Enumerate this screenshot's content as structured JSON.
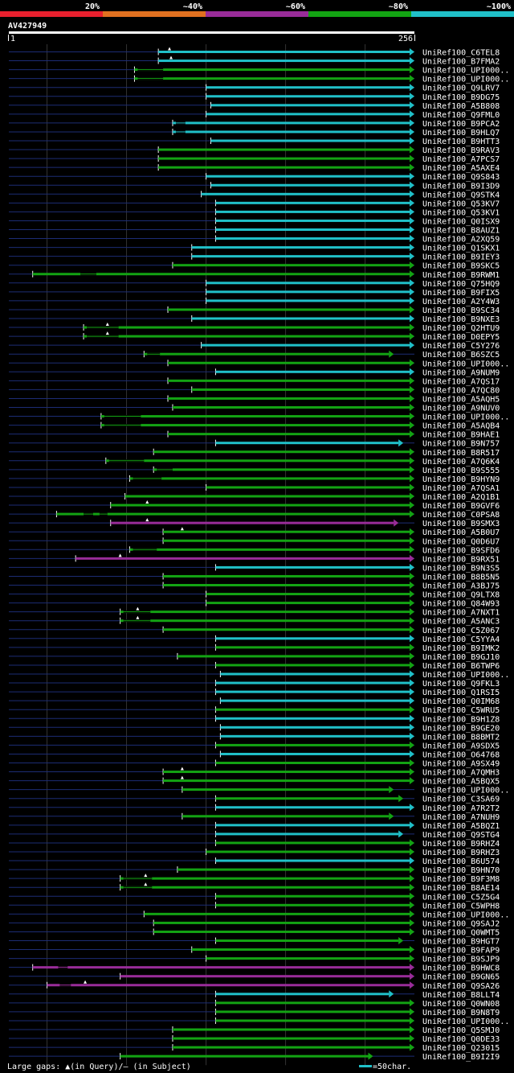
{
  "chart_data": {
    "type": "alignment-overview",
    "query_id": "AV427949",
    "query_start": "1",
    "query_end": "256",
    "query_length": 256,
    "identity_legend": [
      {
        "label": "20%",
        "color": "#e8202e"
      },
      {
        "label": "~40%",
        "color": "#e07020"
      },
      {
        "label": "~60%",
        "color": "#992c99"
      },
      {
        "label": "~80%",
        "color": "#13a313"
      },
      {
        "label": "~100%",
        "color": "#20c0c8"
      }
    ],
    "gridlines": [
      25,
      75,
      125,
      175,
      225
    ],
    "footer_gaps": "Large gaps: ▲(in Query)/– (in Subject)",
    "footer_scale": "=50char.",
    "hits": [
      {
        "id": "UniRef100_C6TEL8",
        "start": 95,
        "end": 256,
        "cls": "100",
        "gq": [
          102
        ],
        "gs": []
      },
      {
        "id": "UniRef100_B7FMA2",
        "start": 95,
        "end": 256,
        "cls": "100",
        "gq": [
          103
        ],
        "gs": []
      },
      {
        "id": "UniRef100_UPI000..",
        "start": 80,
        "end": 256,
        "cls": "80",
        "gq": [],
        "gs": [
          [
            82,
            98
          ]
        ]
      },
      {
        "id": "UniRef100_UPI000..",
        "start": 80,
        "end": 256,
        "cls": "80",
        "gq": [],
        "gs": [
          [
            82,
            98
          ]
        ]
      },
      {
        "id": "UniRef100_Q9LRV7",
        "start": 125,
        "end": 256,
        "cls": "100",
        "gq": [],
        "gs": []
      },
      {
        "id": "UniRef100_B9DG75",
        "start": 125,
        "end": 256,
        "cls": "100",
        "gq": [],
        "gs": []
      },
      {
        "id": "UniRef100_A5B808",
        "start": 128,
        "end": 256,
        "cls": "100",
        "gq": [],
        "gs": []
      },
      {
        "id": "UniRef100_Q9FML0",
        "start": 125,
        "end": 256,
        "cls": "100",
        "gq": [],
        "gs": []
      },
      {
        "id": "UniRef100_B9PCA2",
        "start": 104,
        "end": 256,
        "cls": "100",
        "gq": [],
        "gs": [
          [
            106,
            112
          ]
        ]
      },
      {
        "id": "UniRef100_B9HLQ7",
        "start": 104,
        "end": 256,
        "cls": "100",
        "gq": [],
        "gs": [
          [
            106,
            112
          ]
        ]
      },
      {
        "id": "UniRef100_B9HTT3",
        "start": 128,
        "end": 256,
        "cls": "100",
        "gq": [],
        "gs": []
      },
      {
        "id": "UniRef100_B9RAV3",
        "start": 95,
        "end": 256,
        "cls": "80",
        "gq": [],
        "gs": []
      },
      {
        "id": "UniRef100_A7PCS7",
        "start": 95,
        "end": 256,
        "cls": "80",
        "gq": [],
        "gs": []
      },
      {
        "id": "UniRef100_A5AXE4",
        "start": 95,
        "end": 256,
        "cls": "80",
        "gq": [],
        "gs": []
      },
      {
        "id": "UniRef100_Q9S843",
        "start": 125,
        "end": 256,
        "cls": "100",
        "gq": [],
        "gs": []
      },
      {
        "id": "UniRef100_B9I3D9",
        "start": 128,
        "end": 256,
        "cls": "100",
        "gq": [],
        "gs": []
      },
      {
        "id": "UniRef100_Q9STK4",
        "start": 122,
        "end": 256,
        "cls": "100",
        "gq": [],
        "gs": []
      },
      {
        "id": "UniRef100_Q53KV7",
        "start": 131,
        "end": 256,
        "cls": "100",
        "gq": [],
        "gs": []
      },
      {
        "id": "UniRef100_Q53KV1",
        "start": 131,
        "end": 256,
        "cls": "100",
        "gq": [],
        "gs": []
      },
      {
        "id": "UniRef100_Q0ISX9",
        "start": 131,
        "end": 256,
        "cls": "100",
        "gq": [],
        "gs": []
      },
      {
        "id": "UniRef100_B8AUZ1",
        "start": 131,
        "end": 256,
        "cls": "100",
        "gq": [],
        "gs": []
      },
      {
        "id": "UniRef100_A2XQ59",
        "start": 131,
        "end": 256,
        "cls": "100",
        "gq": [],
        "gs": []
      },
      {
        "id": "UniRef100_Q1SKX1",
        "start": 116,
        "end": 256,
        "cls": "100",
        "gq": [],
        "gs": []
      },
      {
        "id": "UniRef100_B9IEY3",
        "start": 116,
        "end": 256,
        "cls": "100",
        "gq": [],
        "gs": []
      },
      {
        "id": "UniRef100_B9SKC5",
        "start": 104,
        "end": 256,
        "cls": "80",
        "gq": [],
        "gs": []
      },
      {
        "id": "UniRef100_B9RWM1",
        "start": 16,
        "end": 256,
        "cls": "80",
        "gq": [],
        "gs": [
          [
            46,
            56
          ]
        ]
      },
      {
        "id": "UniRef100_Q75HQ9",
        "start": 125,
        "end": 256,
        "cls": "100",
        "gq": [],
        "gs": []
      },
      {
        "id": "UniRef100_B9FIX5",
        "start": 125,
        "end": 256,
        "cls": "100",
        "gq": [],
        "gs": []
      },
      {
        "id": "UniRef100_A2Y4W3",
        "start": 125,
        "end": 256,
        "cls": "100",
        "gq": [],
        "gs": []
      },
      {
        "id": "UniRef100_B9SC34",
        "start": 101,
        "end": 256,
        "cls": "80",
        "gq": [],
        "gs": []
      },
      {
        "id": "UniRef100_B9NXE3",
        "start": 116,
        "end": 256,
        "cls": "100",
        "gq": [],
        "gs": []
      },
      {
        "id": "UniRef100_Q2HTU9",
        "start": 48,
        "end": 256,
        "cls": "80",
        "gq": [
          63
        ],
        "gs": [
          [
            50,
            70
          ]
        ]
      },
      {
        "id": "UniRef100_D0EPY5",
        "start": 48,
        "end": 256,
        "cls": "80",
        "gq": [
          63
        ],
        "gs": [
          [
            50,
            70
          ]
        ]
      },
      {
        "id": "UniRef100_C5Y276",
        "start": 122,
        "end": 256,
        "cls": "100",
        "gq": [],
        "gs": []
      },
      {
        "id": "UniRef100_B6SZC5",
        "start": 86,
        "end": 243,
        "cls": "80",
        "gq": [],
        "gs": [
          [
            88,
            96
          ]
        ]
      },
      {
        "id": "UniRef100_UPI000..",
        "start": 101,
        "end": 256,
        "cls": "80",
        "gq": [],
        "gs": []
      },
      {
        "id": "UniRef100_A9NUM9",
        "start": 131,
        "end": 256,
        "cls": "100",
        "gq": [],
        "gs": []
      },
      {
        "id": "UniRef100_A7QS17",
        "start": 101,
        "end": 256,
        "cls": "80",
        "gq": [],
        "gs": []
      },
      {
        "id": "UniRef100_A7QC80",
        "start": 116,
        "end": 256,
        "cls": "80",
        "gq": [],
        "gs": []
      },
      {
        "id": "UniRef100_A5AQH5",
        "start": 101,
        "end": 256,
        "cls": "80",
        "gq": [],
        "gs": []
      },
      {
        "id": "UniRef100_A9NUV0",
        "start": 104,
        "end": 256,
        "cls": "80",
        "gq": [],
        "gs": []
      },
      {
        "id": "UniRef100_UPI000..",
        "start": 59,
        "end": 256,
        "cls": "80",
        "gq": [],
        "gs": [
          [
            61,
            84
          ]
        ]
      },
      {
        "id": "UniRef100_A5AQB4",
        "start": 59,
        "end": 256,
        "cls": "80",
        "gq": [],
        "gs": [
          [
            61,
            84
          ]
        ]
      },
      {
        "id": "UniRef100_B9HAE1",
        "start": 101,
        "end": 256,
        "cls": "80",
        "gq": [],
        "gs": []
      },
      {
        "id": "UniRef100_B9N757",
        "start": 131,
        "end": 249,
        "cls": "100",
        "gq": [],
        "gs": []
      },
      {
        "id": "UniRef100_B8R517",
        "start": 92,
        "end": 256,
        "cls": "80",
        "gq": [],
        "gs": []
      },
      {
        "id": "UniRef100_A7Q6K4",
        "start": 62,
        "end": 256,
        "cls": "80",
        "gq": [],
        "gs": [
          [
            64,
            86
          ]
        ]
      },
      {
        "id": "UniRef100_B9S555",
        "start": 92,
        "end": 256,
        "cls": "80",
        "gq": [],
        "gs": [
          [
            94,
            104
          ]
        ]
      },
      {
        "id": "UniRef100_B9HYN9",
        "start": 77,
        "end": 256,
        "cls": "80",
        "gq": [],
        "gs": [
          [
            79,
            97
          ]
        ]
      },
      {
        "id": "UniRef100_A7QSA1",
        "start": 125,
        "end": 256,
        "cls": "80",
        "gq": [],
        "gs": []
      },
      {
        "id": "UniRef100_A2Q1B1",
        "start": 74,
        "end": 256,
        "cls": "80",
        "gq": [],
        "gs": []
      },
      {
        "id": "UniRef100_B9GVF6",
        "start": 65,
        "end": 256,
        "cls": "80",
        "gq": [
          88
        ],
        "gs": []
      },
      {
        "id": "UniRef100_C0PSA8",
        "start": 31,
        "end": 256,
        "cls": "80",
        "gq": [],
        "gs": [
          [
            48,
            54
          ],
          [
            58,
            63
          ]
        ]
      },
      {
        "id": "UniRef100_B9SMX3",
        "start": 65,
        "end": 246,
        "cls": "60",
        "gq": [
          88
        ],
        "gs": []
      },
      {
        "id": "UniRef100_A5B0U7",
        "start": 98,
        "end": 256,
        "cls": "80",
        "gq": [
          110
        ],
        "gs": []
      },
      {
        "id": "UniRef100_Q0D6U7",
        "start": 98,
        "end": 256,
        "cls": "80",
        "gq": [],
        "gs": []
      },
      {
        "id": "UniRef100_B9SFD6",
        "start": 77,
        "end": 256,
        "cls": "80",
        "gq": [],
        "gs": [
          [
            79,
            94
          ]
        ]
      },
      {
        "id": "UniRef100_B9RX51",
        "start": 43,
        "end": 256,
        "cls": "60",
        "gq": [
          71
        ],
        "gs": []
      },
      {
        "id": "UniRef100_B9N3S5",
        "start": 131,
        "end": 256,
        "cls": "100",
        "gq": [],
        "gs": []
      },
      {
        "id": "UniRef100_B8B5N5",
        "start": 98,
        "end": 256,
        "cls": "80",
        "gq": [],
        "gs": []
      },
      {
        "id": "UniRef100_A3BJ75",
        "start": 98,
        "end": 256,
        "cls": "80",
        "gq": [],
        "gs": []
      },
      {
        "id": "UniRef100_Q9LTX8",
        "start": 125,
        "end": 256,
        "cls": "80",
        "gq": [],
        "gs": []
      },
      {
        "id": "UniRef100_Q84W93",
        "start": 125,
        "end": 256,
        "cls": "80",
        "gq": [],
        "gs": []
      },
      {
        "id": "UniRef100_A7NXT1",
        "start": 71,
        "end": 256,
        "cls": "80",
        "gq": [
          82
        ],
        "gs": [
          [
            73,
            90
          ]
        ]
      },
      {
        "id": "UniRef100_A5ANC3",
        "start": 71,
        "end": 256,
        "cls": "80",
        "gq": [
          82
        ],
        "gs": [
          [
            73,
            90
          ]
        ]
      },
      {
        "id": "UniRef100_C5Z067",
        "start": 98,
        "end": 256,
        "cls": "80",
        "gq": [],
        "gs": []
      },
      {
        "id": "UniRef100_C5YYA4",
        "start": 131,
        "end": 256,
        "cls": "100",
        "gq": [],
        "gs": []
      },
      {
        "id": "UniRef100_B9IMK2",
        "start": 131,
        "end": 256,
        "cls": "80",
        "gq": [],
        "gs": []
      },
      {
        "id": "UniRef100_B9GJ10",
        "start": 107,
        "end": 256,
        "cls": "80",
        "gq": [],
        "gs": []
      },
      {
        "id": "UniRef100_B6TWP6",
        "start": 131,
        "end": 256,
        "cls": "80",
        "gq": [],
        "gs": []
      },
      {
        "id": "UniRef100_UPI000..",
        "start": 134,
        "end": 256,
        "cls": "100",
        "gq": [],
        "gs": []
      },
      {
        "id": "UniRef100_Q9FKL3",
        "start": 131,
        "end": 256,
        "cls": "100",
        "gq": [],
        "gs": []
      },
      {
        "id": "UniRef100_Q1RSI5",
        "start": 131,
        "end": 256,
        "cls": "100",
        "gq": [],
        "gs": []
      },
      {
        "id": "UniRef100_Q0IM68",
        "start": 134,
        "end": 256,
        "cls": "100",
        "gq": [],
        "gs": []
      },
      {
        "id": "UniRef100_C5WRU5",
        "start": 131,
        "end": 256,
        "cls": "80",
        "gq": [],
        "gs": []
      },
      {
        "id": "UniRef100_B9H1Z8",
        "start": 131,
        "end": 256,
        "cls": "100",
        "gq": [],
        "gs": []
      },
      {
        "id": "UniRef100_B9GE20",
        "start": 134,
        "end": 256,
        "cls": "100",
        "gq": [],
        "gs": []
      },
      {
        "id": "UniRef100_B8BMT2",
        "start": 134,
        "end": 256,
        "cls": "100",
        "gq": [],
        "gs": []
      },
      {
        "id": "UniRef100_A9SDX5",
        "start": 131,
        "end": 256,
        "cls": "80",
        "gq": [],
        "gs": []
      },
      {
        "id": "UniRef100_O64768",
        "start": 134,
        "end": 256,
        "cls": "100",
        "gq": [],
        "gs": []
      },
      {
        "id": "UniRef100_A9SX49",
        "start": 131,
        "end": 256,
        "cls": "80",
        "gq": [],
        "gs": []
      },
      {
        "id": "UniRef100_A7QMH3",
        "start": 98,
        "end": 256,
        "cls": "80",
        "gq": [
          110
        ],
        "gs": []
      },
      {
        "id": "UniRef100_A5BQX5",
        "start": 98,
        "end": 256,
        "cls": "80",
        "gq": [
          110
        ],
        "gs": []
      },
      {
        "id": "UniRef100_UPI000..",
        "start": 110,
        "end": 243,
        "cls": "80",
        "gq": [],
        "gs": []
      },
      {
        "id": "UniRef100_C3SA69",
        "start": 131,
        "end": 249,
        "cls": "80",
        "gq": [],
        "gs": []
      },
      {
        "id": "UniRef100_A7R2T2",
        "start": 131,
        "end": 256,
        "cls": "100",
        "gq": [],
        "gs": []
      },
      {
        "id": "UniRef100_A7NUH9",
        "start": 110,
        "end": 243,
        "cls": "80",
        "gq": [],
        "gs": []
      },
      {
        "id": "UniRef100_A5BQZ1",
        "start": 131,
        "end": 256,
        "cls": "100",
        "gq": [],
        "gs": []
      },
      {
        "id": "UniRef100_Q9STG4",
        "start": 131,
        "end": 249,
        "cls": "100",
        "gq": [],
        "gs": []
      },
      {
        "id": "UniRef100_B9RHZ4",
        "start": 131,
        "end": 256,
        "cls": "80",
        "gq": [],
        "gs": []
      },
      {
        "id": "UniRef100_B9RHZ3",
        "start": 125,
        "end": 256,
        "cls": "80",
        "gq": [],
        "gs": []
      },
      {
        "id": "UniRef100_B6U574",
        "start": 131,
        "end": 256,
        "cls": "100",
        "gq": [],
        "gs": []
      },
      {
        "id": "UniRef100_B9HN70",
        "start": 107,
        "end": 256,
        "cls": "80",
        "gq": [],
        "gs": []
      },
      {
        "id": "UniRef100_B9F3M8",
        "start": 71,
        "end": 256,
        "cls": "80",
        "gq": [
          87
        ],
        "gs": [
          [
            73,
            91
          ]
        ]
      },
      {
        "id": "UniRef100_B8AE14",
        "start": 71,
        "end": 256,
        "cls": "80",
        "gq": [
          87
        ],
        "gs": [
          [
            73,
            91
          ]
        ]
      },
      {
        "id": "UniRef100_C5Z5G4",
        "start": 131,
        "end": 256,
        "cls": "80",
        "gq": [],
        "gs": []
      },
      {
        "id": "UniRef100_C5WPH8",
        "start": 131,
        "end": 256,
        "cls": "80",
        "gq": [],
        "gs": []
      },
      {
        "id": "UniRef100_UPI000..",
        "start": 86,
        "end": 256,
        "cls": "80",
        "gq": [],
        "gs": []
      },
      {
        "id": "UniRef100_Q9SAJ2",
        "start": 92,
        "end": 256,
        "cls": "80",
        "gq": [],
        "gs": []
      },
      {
        "id": "UniRef100_Q0WMT5",
        "start": 92,
        "end": 256,
        "cls": "80",
        "gq": [],
        "gs": []
      },
      {
        "id": "UniRef100_B9HGT7",
        "start": 131,
        "end": 249,
        "cls": "80",
        "gq": [],
        "gs": []
      },
      {
        "id": "UniRef100_B9FAP9",
        "start": 116,
        "end": 256,
        "cls": "80",
        "gq": [],
        "gs": []
      },
      {
        "id": "UniRef100_B9SJP9",
        "start": 125,
        "end": 256,
        "cls": "80",
        "gq": [],
        "gs": []
      },
      {
        "id": "UniRef100_B9HWC8",
        "start": 16,
        "end": 256,
        "cls": "60",
        "gq": [],
        "gs": [
          [
            32,
            38
          ]
        ]
      },
      {
        "id": "UniRef100_B9GN65",
        "start": 71,
        "end": 256,
        "cls": "60",
        "gq": [],
        "gs": []
      },
      {
        "id": "UniRef100_Q9SA26",
        "start": 25,
        "end": 256,
        "cls": "60",
        "gq": [
          49
        ],
        "gs": [
          [
            33,
            40
          ]
        ]
      },
      {
        "id": "UniRef100_B8LLT4",
        "start": 131,
        "end": 243,
        "cls": "100",
        "gq": [],
        "gs": []
      },
      {
        "id": "UniRef100_Q0WN08",
        "start": 131,
        "end": 256,
        "cls": "80",
        "gq": [],
        "gs": []
      },
      {
        "id": "UniRef100_B9N8T9",
        "start": 131,
        "end": 256,
        "cls": "80",
        "gq": [],
        "gs": []
      },
      {
        "id": "UniRef100_UPI000..",
        "start": 131,
        "end": 256,
        "cls": "80",
        "gq": [],
        "gs": []
      },
      {
        "id": "UniRef100_Q5SMJ0",
        "start": 104,
        "end": 256,
        "cls": "80",
        "gq": [],
        "gs": []
      },
      {
        "id": "UniRef100_Q0DE33",
        "start": 104,
        "end": 256,
        "cls": "80",
        "gq": [],
        "gs": []
      },
      {
        "id": "UniRef100_Q23015",
        "start": 104,
        "end": 256,
        "cls": "80",
        "gq": [],
        "gs": []
      },
      {
        "id": "UniRef100_B9I2I9",
        "start": 71,
        "end": 230,
        "cls": "80",
        "gq": [],
        "gs": []
      }
    ]
  }
}
